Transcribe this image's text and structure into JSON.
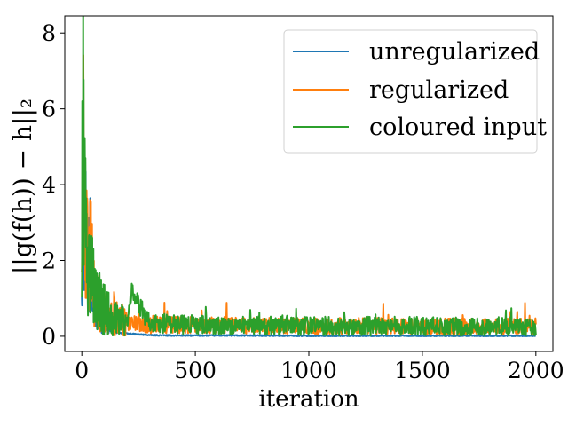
{
  "chart_data": {
    "type": "line",
    "title": "",
    "xlabel": "iteration",
    "ylabel": "||g(f(h)) − h||₂",
    "xlim": [
      -75,
      2075
    ],
    "ylim": [
      -0.4,
      8.45
    ],
    "xticks": [
      0,
      500,
      1000,
      1500,
      2000
    ],
    "xtick_labels": [
      "0",
      "500",
      "1000",
      "1500",
      "2000"
    ],
    "yticks": [
      0,
      2,
      4,
      6,
      8
    ],
    "ytick_labels": [
      "0",
      "2",
      "4",
      "6",
      "8"
    ],
    "grid": false,
    "legend_position": "upper-right",
    "series": [
      {
        "name": "unregularized",
        "color": "#1f77b4",
        "x": [
          0,
          5,
          10,
          15,
          20,
          25,
          30,
          35,
          40,
          45,
          50,
          60,
          70,
          80,
          90,
          100,
          120,
          150,
          200,
          250,
          300,
          400,
          500,
          700,
          1000,
          1300,
          1600,
          2000
        ],
        "y": [
          1.5,
          4.0,
          2.0,
          3.5,
          2.5,
          4.2,
          1.5,
          3.2,
          1.0,
          2.0,
          0.6,
          0.8,
          0.4,
          0.5,
          0.2,
          0.3,
          0.15,
          0.1,
          0.07,
          0.05,
          0.03,
          0.02,
          0.02,
          0.02,
          0.01,
          0.01,
          0.01,
          0.01
        ]
      },
      {
        "name": "regularized",
        "color": "#ff7f0e",
        "x": [
          0,
          5,
          10,
          15,
          20,
          30,
          40,
          50,
          60,
          80,
          100,
          150,
          200,
          300,
          500,
          800,
          1000,
          1300,
          1600,
          1800,
          2000
        ],
        "y": [
          2.0,
          7.7,
          3.5,
          2.0,
          2.6,
          1.5,
          2.7,
          1.2,
          1.0,
          0.7,
          0.6,
          0.45,
          0.35,
          0.3,
          0.3,
          0.28,
          0.27,
          0.27,
          0.26,
          0.26,
          0.26
        ],
        "noise_amplitude": 0.22
      },
      {
        "name": "coloured input",
        "color": "#2ca02c",
        "x": [
          0,
          3,
          6,
          10,
          15,
          20,
          30,
          40,
          50,
          60,
          80,
          100,
          150,
          200,
          220,
          300,
          500,
          800,
          1000,
          1300,
          1650,
          1800,
          2000
        ],
        "y": [
          1.0,
          8.0,
          5.5,
          4.0,
          3.0,
          2.0,
          1.8,
          1.5,
          1.6,
          1.2,
          0.9,
          0.7,
          0.45,
          0.35,
          1.15,
          0.32,
          0.3,
          0.28,
          0.27,
          0.27,
          0.27,
          0.26,
          0.26
        ],
        "noise_amplitude": 0.25
      }
    ]
  }
}
